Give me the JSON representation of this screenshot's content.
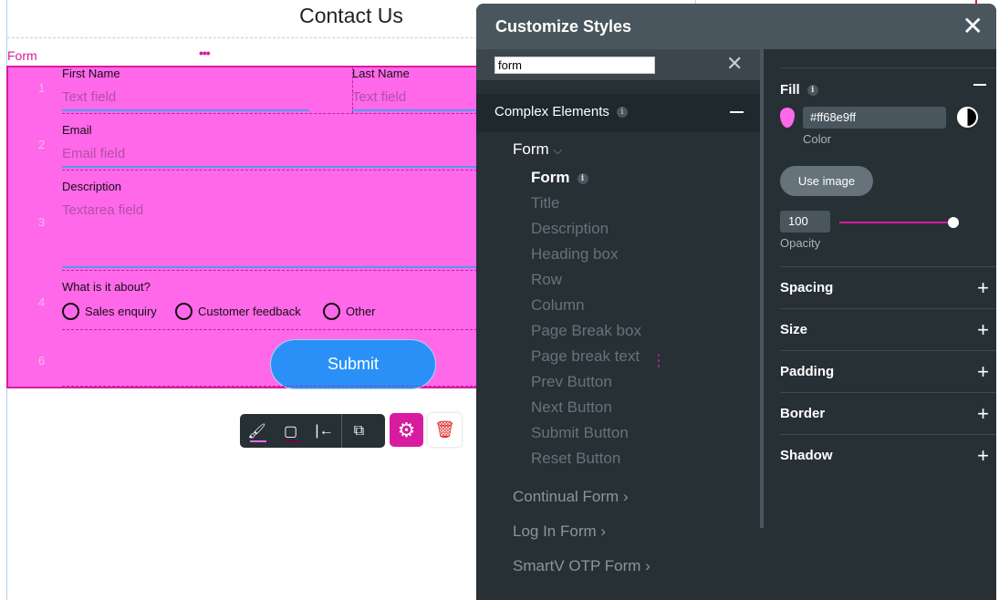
{
  "canvas": {
    "title": "Contact Us",
    "form_label": "Form",
    "more_icon": "ellipsis-icon",
    "rows": [
      {
        "num": "1",
        "fields": [
          {
            "label": "First Name",
            "placeholder": "Text field"
          },
          {
            "label": "Last Name",
            "placeholder": "Text field"
          }
        ]
      },
      {
        "num": "2",
        "fields": [
          {
            "label": "Email",
            "placeholder": "Email field"
          }
        ]
      },
      {
        "num": "3",
        "fields": [
          {
            "label": "Description",
            "placeholder": "Textarea field"
          }
        ]
      },
      {
        "num": "4",
        "question": "What is it about?",
        "options": [
          "Sales enquiry",
          "Customer feedback",
          "Other"
        ]
      },
      {
        "num": "6",
        "button": "Submit"
      }
    ],
    "form_fill": "#ff68e9",
    "accent": "#d81b9f",
    "button_color": "#2a90f8"
  },
  "toolbar": {
    "icons": [
      "fill-icon",
      "border-icon",
      "align-left-icon",
      "external-link-icon",
      "gear-icon",
      "trash-icon"
    ]
  },
  "panel": {
    "title": "Customize Styles",
    "search_value": "form",
    "category": "Complex Elements",
    "group": "Form",
    "items": [
      "Form",
      "Title",
      "Description",
      "Heading box",
      "Row",
      "Column",
      "Page Break box",
      "Page break text",
      "Prev Button",
      "Next Button",
      "Submit Button",
      "Reset Button"
    ],
    "other_groups": [
      "Continual Form",
      "Log In Form",
      "SmartV OTP Form"
    ],
    "fill": {
      "label": "Fill",
      "color_value": "#ff68e9ff",
      "color_label": "Color",
      "use_image": "Use image",
      "opacity": "100",
      "opacity_label": "Opacity",
      "opacity_level": 1.0
    },
    "sections": [
      "Spacing",
      "Size",
      "Padding",
      "Border",
      "Shadow"
    ]
  }
}
